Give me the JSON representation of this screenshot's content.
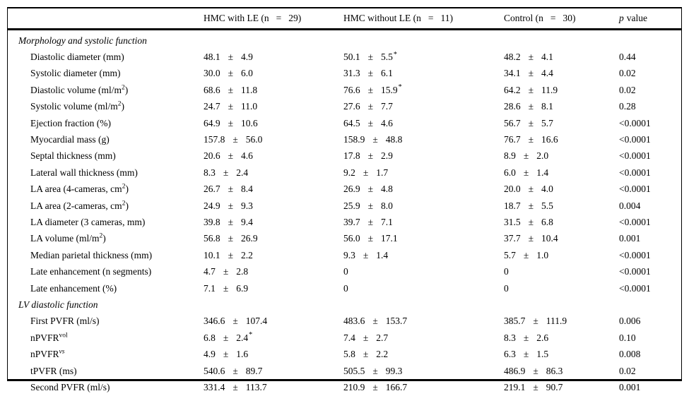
{
  "pm": "±",
  "header": {
    "cols": [
      {
        "p1": "HMC with LE (n",
        "eq": "=",
        "p2": "29)"
      },
      {
        "p1": "HMC without LE (n",
        "eq": "=",
        "p2": "11)"
      },
      {
        "p1": "Control (n",
        "eq": "=",
        "p2": "30)"
      },
      {
        "p_italic": "p",
        "p_rest": "value"
      }
    ]
  },
  "rows": [
    {
      "type": "section",
      "label": "Morphology and systolic function"
    },
    {
      "type": "data",
      "label": {
        "pre": "Diastolic diameter (mm)"
      },
      "cells": [
        {
          "v": "48.1",
          "sd": "4.9"
        },
        {
          "v": "50.1",
          "sd": "5.5",
          "star": "*"
        },
        {
          "v": "48.2",
          "sd": "4.1"
        }
      ],
      "p": "0.44"
    },
    {
      "type": "data",
      "label": {
        "pre": "Systolic diameter (mm)"
      },
      "cells": [
        {
          "v": "30.0",
          "sd": "6.0"
        },
        {
          "v": "31.3",
          "sd": "6.1"
        },
        {
          "v": "34.1",
          "sd": "4.4"
        }
      ],
      "p": "0.02"
    },
    {
      "type": "data",
      "label": {
        "pre": "Diastolic volume (ml/m",
        "sup": "2",
        "post": ")"
      },
      "cells": [
        {
          "v": "68.6",
          "sd": "11.8"
        },
        {
          "v": "76.6",
          "sd": "15.9",
          "star": "*"
        },
        {
          "v": "64.2",
          "sd": "11.9"
        }
      ],
      "p": "0.02"
    },
    {
      "type": "data",
      "label": {
        "pre": "Systolic volume (ml/m",
        "sup": "2",
        "post": ")"
      },
      "cells": [
        {
          "v": "24.7",
          "sd": "11.0"
        },
        {
          "v": "27.6",
          "sd": "7.7"
        },
        {
          "v": "28.6",
          "sd": "8.1"
        }
      ],
      "p": "0.28"
    },
    {
      "type": "data",
      "label": {
        "pre": "Ejection fraction (%)"
      },
      "cells": [
        {
          "v": "64.9",
          "sd": "10.6"
        },
        {
          "v": "64.5",
          "sd": "4.6"
        },
        {
          "v": "56.7",
          "sd": "5.7"
        }
      ],
      "p": "<0.0001"
    },
    {
      "type": "data",
      "label": {
        "pre": "Myocardial mass (g)"
      },
      "cells": [
        {
          "v": "157.8",
          "sd": "56.0"
        },
        {
          "v": "158.9",
          "sd": "48.8"
        },
        {
          "v": "76.7",
          "sd": "16.6"
        }
      ],
      "p": "<0.0001"
    },
    {
      "type": "data",
      "label": {
        "pre": "Septal thickness (mm)"
      },
      "cells": [
        {
          "v": "20.6",
          "sd": "4.6"
        },
        {
          "v": "17.8",
          "sd": "2.9"
        },
        {
          "v": "8.9",
          "sd": "2.0"
        }
      ],
      "p": "<0.0001"
    },
    {
      "type": "data",
      "label": {
        "pre": "Lateral wall thickness (mm)"
      },
      "cells": [
        {
          "v": "8.3",
          "sd": "2.4"
        },
        {
          "v": "9.2",
          "sd": "1.7"
        },
        {
          "v": "6.0",
          "sd": "1.4"
        }
      ],
      "p": "<0.0001"
    },
    {
      "type": "data",
      "label": {
        "pre": "LA area (4-cameras, cm",
        "sup": "2",
        "post": ")"
      },
      "cells": [
        {
          "v": "26.7",
          "sd": "8.4"
        },
        {
          "v": "26.9",
          "sd": "4.8"
        },
        {
          "v": "20.0",
          "sd": "4.0"
        }
      ],
      "p": "<0.0001"
    },
    {
      "type": "data",
      "label": {
        "pre": "LA area (2-cameras, cm",
        "sup": "2",
        "post": ")"
      },
      "cells": [
        {
          "v": "24.9",
          "sd": "9.3"
        },
        {
          "v": "25.9",
          "sd": "8.0"
        },
        {
          "v": "18.7",
          "sd": "5.5"
        }
      ],
      "p": "0.004"
    },
    {
      "type": "data",
      "label": {
        "pre": "LA diameter (3 cameras, mm)"
      },
      "cells": [
        {
          "v": "39.8",
          "sd": "9.4"
        },
        {
          "v": "39.7",
          "sd": "7.1"
        },
        {
          "v": "31.5",
          "sd": "6.8"
        }
      ],
      "p": "<0.0001"
    },
    {
      "type": "data",
      "label": {
        "pre": "LA volume (ml/m",
        "sup": "2",
        "post": ")"
      },
      "cells": [
        {
          "v": "56.8",
          "sd": "26.9"
        },
        {
          "v": "56.0",
          "sd": "17.1"
        },
        {
          "v": "37.7",
          "sd": "10.4"
        }
      ],
      "p": "0.001"
    },
    {
      "type": "data",
      "label": {
        "pre": "Median parietal thickness (mm)"
      },
      "cells": [
        {
          "v": "10.1",
          "sd": "2.2"
        },
        {
          "v": "9.3",
          "sd": "1.4"
        },
        {
          "v": "5.7",
          "sd": "1.0"
        }
      ],
      "p": "<0.0001"
    },
    {
      "type": "data",
      "label": {
        "pre": "Late enhancement (n segments)"
      },
      "cells": [
        {
          "v": "4.7",
          "sd": "2.8"
        },
        {
          "v": "0"
        },
        {
          "v": "0"
        }
      ],
      "p": "<0.0001"
    },
    {
      "type": "data",
      "label": {
        "pre": "Late enhancement (%)"
      },
      "cells": [
        {
          "v": "7.1",
          "sd": "6.9"
        },
        {
          "v": "0"
        },
        {
          "v": "0"
        }
      ],
      "p": "<0.0001"
    },
    {
      "type": "section",
      "label": "LV diastolic function"
    },
    {
      "type": "data",
      "label": {
        "pre": "First PVFR (ml/s)"
      },
      "cells": [
        {
          "v": "346.6",
          "sd": "107.4"
        },
        {
          "v": "483.6",
          "sd": "153.7"
        },
        {
          "v": "385.7",
          "sd": "111.9"
        }
      ],
      "p": "0.006"
    },
    {
      "type": "data",
      "label": {
        "pre": "nPVFR",
        "sup": "vol"
      },
      "cells": [
        {
          "v": "6.8",
          "sd": "2.4",
          "star": "*"
        },
        {
          "v": "7.4",
          "sd": "2.7"
        },
        {
          "v": "8.3",
          "sd": "2.6"
        }
      ],
      "p": "0.10"
    },
    {
      "type": "data",
      "label": {
        "pre": "nPVFR",
        "sup": "vs",
        "supItalic": true
      },
      "cells": [
        {
          "v": "4.9",
          "sd": "1.6"
        },
        {
          "v": "5.8",
          "sd": "2.2"
        },
        {
          "v": "6.3",
          "sd": "1.5"
        }
      ],
      "p": "0.008"
    },
    {
      "type": "data",
      "label": {
        "pre": "tPVFR (ms)"
      },
      "cells": [
        {
          "v": "540.6",
          "sd": "89.7"
        },
        {
          "v": "505.5",
          "sd": "99.3"
        },
        {
          "v": "486.9",
          "sd": "86.3"
        }
      ],
      "p": "0.02"
    },
    {
      "type": "data",
      "label": {
        "pre": "Second PVFR (ml/s)"
      },
      "cells": [
        {
          "v": "331.4",
          "sd": "113.7"
        },
        {
          "v": "210.9",
          "sd": "166.7"
        },
        {
          "v": "219.1",
          "sd": "90.7"
        }
      ],
      "p": "0.001"
    }
  ]
}
